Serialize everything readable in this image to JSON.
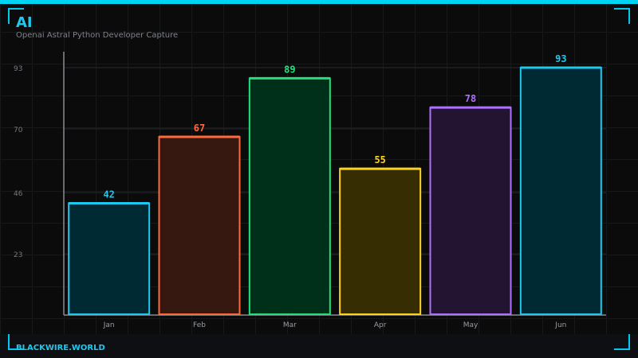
{
  "header": {
    "title": "AI",
    "subtitle": "Openai Astral Python Developer Capture"
  },
  "footer": {
    "brand": "BLACKWIRE.WORLD"
  },
  "colors": {
    "accent": "#00d4f5",
    "background": "#0b0b0c"
  },
  "chart_data": {
    "type": "bar",
    "title": "",
    "xlabel": "",
    "ylabel": "",
    "categories": [
      "Jan",
      "Feb",
      "Mar",
      "Apr",
      "May",
      "Jun"
    ],
    "values": [
      42,
      67,
      89,
      55,
      78,
      93
    ],
    "data_labels": [
      "42",
      "67",
      "89",
      "55",
      "78",
      "93"
    ],
    "bar_colors": [
      "#1ec8ee",
      "#ff6a3d",
      "#22e07a",
      "#ffd21a",
      "#b070ff",
      "#1ec8ee"
    ],
    "bar_fills": [
      "#002a33",
      "#361811",
      "#00301a",
      "#362d02",
      "#231532",
      "#002a33"
    ],
    "yticks": [
      23,
      46,
      70,
      93
    ],
    "ytick_labels": [
      "23",
      "46",
      "70",
      "93"
    ],
    "ylim": [
      0,
      93
    ],
    "grid": true,
    "legend": "none"
  }
}
